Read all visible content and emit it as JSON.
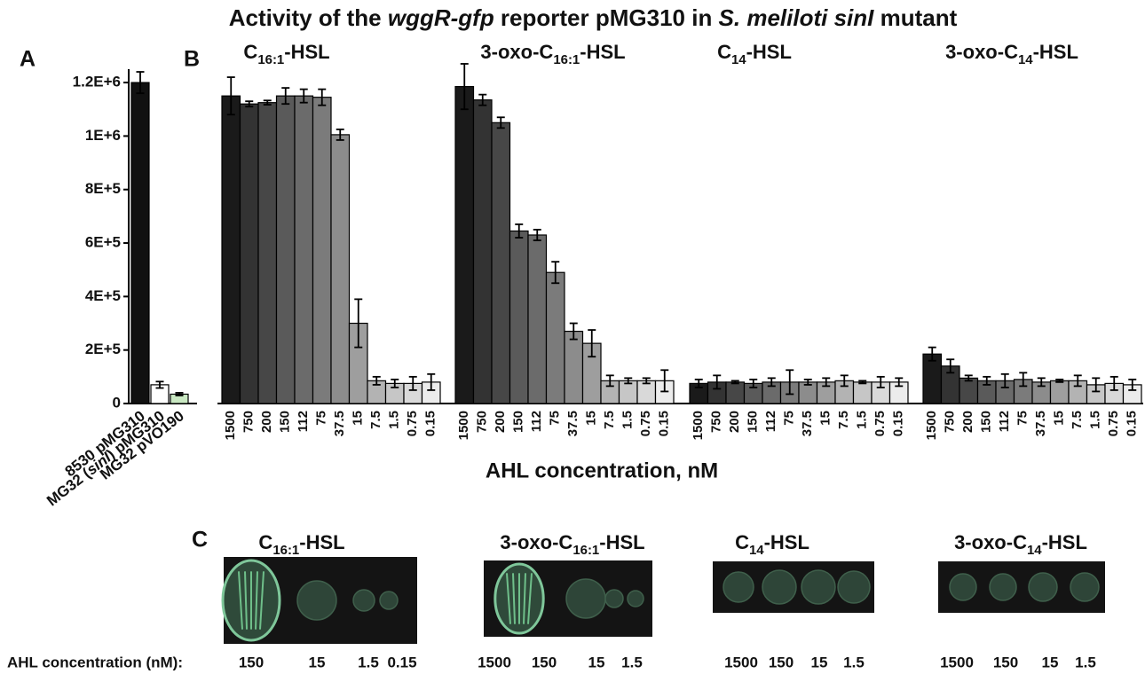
{
  "title": [
    "Activity of the ",
    "wggR-gfp",
    " reporter pMG310 in ",
    "S. meliloti sinI",
    " mutant"
  ],
  "chart_data": [
    {
      "type": "bar",
      "panel": "A",
      "categories": [
        [
          "8530 pMG310"
        ],
        [
          "MG32 (",
          "sinI",
          ") pMG310"
        ],
        [
          "MG32 pVO190"
        ]
      ],
      "values": [
        1200000,
        70000,
        35000
      ],
      "errors": [
        40000,
        12000,
        5000
      ],
      "colors": [
        "#111111",
        "#ffffff",
        "#c9e8c2"
      ],
      "ylim": [
        0,
        1250000
      ],
      "yticks": [
        0,
        {
          "value": 200000,
          "label": "2E+5"
        },
        {
          "value": 400000,
          "label": "4E+5"
        },
        {
          "value": 600000,
          "label": "6E+5"
        },
        {
          "value": 800000,
          "label": "8E+5"
        },
        {
          "value": 1000000,
          "label": "1E+6"
        },
        {
          "value": 1200000,
          "label": "1.2E+6"
        }
      ]
    },
    {
      "type": "grouped-bar",
      "panel": "B",
      "xlabel": "AHL concentration, nM",
      "categories": [
        "1500",
        "750",
        "200",
        "150",
        "112",
        "75",
        "37.5",
        "15",
        "7.5",
        "1.5",
        "0.75",
        "0.15"
      ],
      "colors": [
        "#1a1a1a",
        "#333333",
        "#474747",
        "#5a5a5a",
        "#6b6b6b",
        "#7b7b7b",
        "#8c8c8c",
        "#9e9e9e",
        "#b3b3b3",
        "#c6c6c6",
        "#d9d9d9",
        "#ececec"
      ],
      "ylim": [
        0,
        1250000
      ],
      "groups": [
        {
          "name": [
            "C",
            "16:1",
            "-HSL"
          ],
          "values": [
            1150000,
            1120000,
            1125000,
            1150000,
            1150000,
            1145000,
            1005000,
            300000,
            85000,
            75000,
            75000,
            80000
          ],
          "errors": [
            70000,
            10000,
            8000,
            30000,
            25000,
            30000,
            20000,
            90000,
            15000,
            15000,
            25000,
            30000
          ]
        },
        {
          "name": [
            "3-oxo-C",
            "16:1",
            "-HSL"
          ],
          "values": [
            1185000,
            1135000,
            1050000,
            645000,
            630000,
            490000,
            270000,
            225000,
            85000,
            85000,
            85000,
            85000
          ],
          "errors": [
            85000,
            20000,
            20000,
            25000,
            20000,
            40000,
            30000,
            50000,
            20000,
            10000,
            10000,
            40000
          ]
        },
        {
          "name": [
            "C",
            "14",
            "-HSL"
          ],
          "values": [
            75000,
            80000,
            80000,
            75000,
            80000,
            80000,
            80000,
            80000,
            85000,
            80000,
            80000,
            80000
          ],
          "errors": [
            15000,
            25000,
            5000,
            15000,
            15000,
            45000,
            10000,
            15000,
            20000,
            5000,
            20000,
            15000
          ]
        },
        {
          "name": [
            "3-oxo-C",
            "14",
            "-HSL"
          ],
          "values": [
            185000,
            140000,
            95000,
            85000,
            85000,
            90000,
            80000,
            85000,
            85000,
            70000,
            75000,
            70000
          ],
          "errors": [
            25000,
            25000,
            10000,
            15000,
            25000,
            25000,
            15000,
            5000,
            20000,
            25000,
            25000,
            20000
          ]
        }
      ]
    }
  ],
  "panel_c": {
    "panel": "C",
    "row_label": "AHL concentration (nM):",
    "groups": [
      {
        "name": [
          "C",
          "16:1",
          "-HSL"
        ],
        "concentrations": [
          "150",
          "15",
          "1.5",
          "0.15"
        ]
      },
      {
        "name": [
          "3-oxo-C",
          "16:1",
          "-HSL"
        ],
        "concentrations": [
          "1500",
          "150",
          "15",
          "1.5"
        ]
      },
      {
        "name": [
          "C",
          "14",
          "-HSL"
        ],
        "concentrations": [
          "1500",
          "150",
          "15",
          "1.5"
        ]
      },
      {
        "name": [
          "3-oxo-C",
          "14",
          "-HSL"
        ],
        "concentrations": [
          "1500",
          "150",
          "15",
          "1.5"
        ]
      }
    ]
  }
}
